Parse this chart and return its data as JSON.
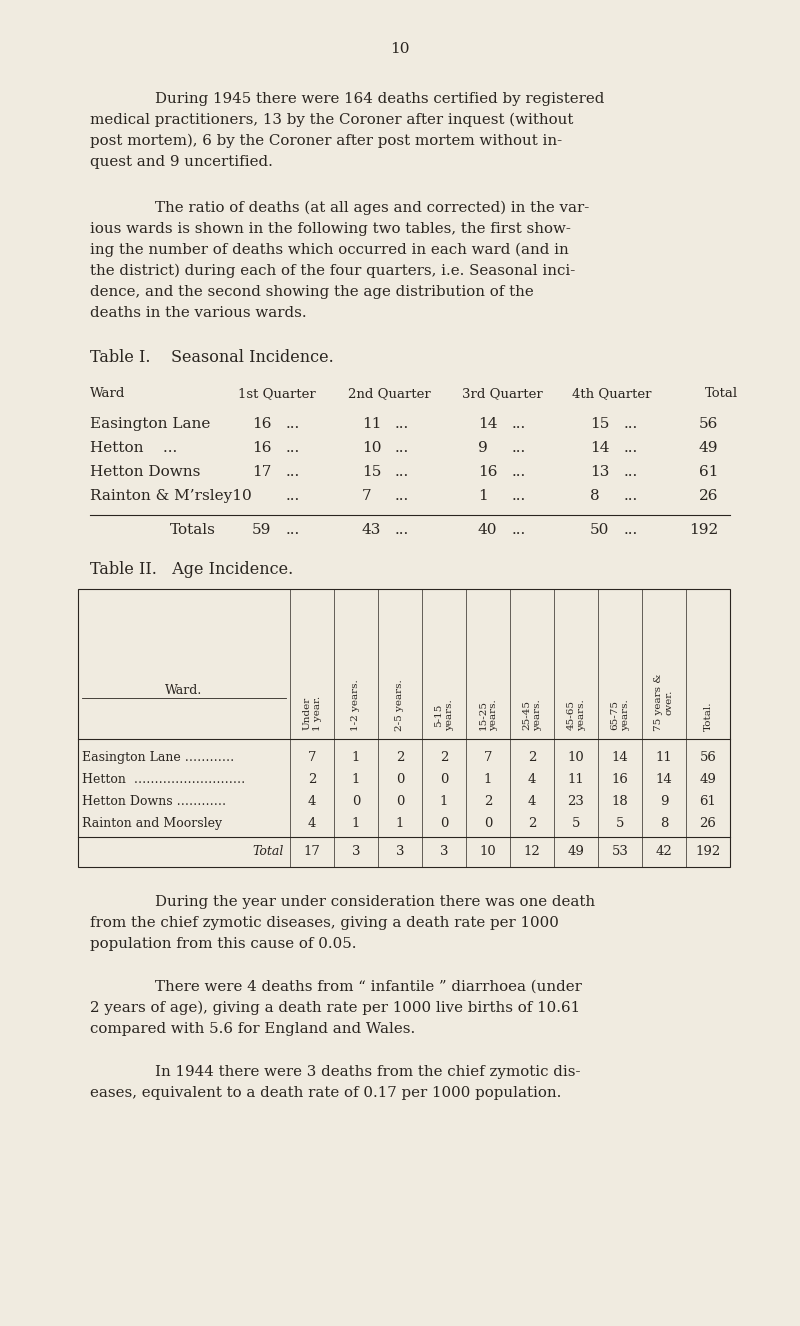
{
  "bg_color": "#f0ebe0",
  "text_color": "#2a2520",
  "page_number": "10",
  "para1_lines": [
    "During 1945 there were 164 deaths certified by registered",
    "medical practitioners, 13 by the Coroner after inquest (without",
    "post mortem), 6 by the Coroner after post mortem without in-",
    "quest and 9 uncertified."
  ],
  "para2_lines": [
    "The ratio of deaths (at all ages and corrected) in the var-",
    "ious wards is shown in the following two tables, the first show-",
    "ing the number of deaths which occurred in each ward (and in",
    "the district) during each of the four quarters, i.e. Seasonal inci-",
    "dence, and the second showing the age distribution of the",
    "deaths in the various wards."
  ],
  "table1_title": "Table I.    Seasonal Incidence.",
  "t1_ward_col": [
    "Easington Lane",
    "Hetton    ...",
    "Hetton Downs",
    "Rainton & M’rsley10"
  ],
  "t1_q1": [
    "16",
    "16",
    "17",
    ""
  ],
  "t1_q2": [
    "11",
    "10",
    "15",
    "7"
  ],
  "t1_q3": [
    "14",
    "9",
    "16",
    "1"
  ],
  "t1_q4": [
    "15",
    "14",
    "13",
    "8"
  ],
  "t1_total": [
    "56",
    "49",
    "61",
    "26"
  ],
  "t1_totals_row": [
    "59",
    "43",
    "40",
    "50",
    "192"
  ],
  "table2_title": "Table II.   Age Incidence.",
  "t2_age_headers": [
    "Under\n1 year.",
    "1-2 years.",
    "2-5 years.",
    "5-15\nyears.",
    "15-25\nyears.",
    "25-45\nyears.",
    "45-65\nyears.",
    "65-75\nyears.",
    "75 years &\nover.",
    "Total."
  ],
  "t2_ward_col": [
    "Easington Lane …………",
    "Hetton  ………………………",
    "Hetton Downs …………",
    "Rainton and Moorsley"
  ],
  "t2_data": [
    [
      7,
      1,
      2,
      2,
      7,
      2,
      10,
      14,
      11,
      56
    ],
    [
      2,
      1,
      0,
      0,
      1,
      4,
      11,
      16,
      14,
      49
    ],
    [
      4,
      0,
      0,
      1,
      2,
      4,
      23,
      18,
      9,
      61
    ],
    [
      4,
      1,
      1,
      0,
      0,
      2,
      5,
      5,
      8,
      26
    ]
  ],
  "t2_totals": [
    17,
    3,
    3,
    3,
    10,
    12,
    49,
    53,
    42,
    192
  ],
  "para3_lines": [
    "During the year under consideration there was one death",
    "from the chief zymotic diseases, giving a death rate per 1000",
    "population from this cause of 0.05."
  ],
  "para4_lines": [
    "There were 4 deaths from “ infantile ” diarrhoea (under",
    "2 years of age), giving a death rate per 1000 live births of 10.61",
    "compared with 5.6 for England and Wales."
  ],
  "para5_lines": [
    "In 1944 there were 3 deaths from the chief zymotic dis-",
    "eases, equivalent to a death rate of 0.17 per 1000 population."
  ]
}
